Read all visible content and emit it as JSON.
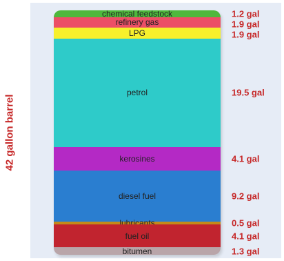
{
  "chart_data": {
    "type": "bar",
    "orientation": "stacked-vertical",
    "ylabel": "42 gallon barrel",
    "total": 42,
    "unit": "gal",
    "categories": [
      "chemical feedstock",
      "refinery gas",
      "LPG",
      "petrol",
      "kerosines",
      "diesel fuel",
      "lubricants",
      "fuel oil",
      "bitumen"
    ],
    "values": [
      1.2,
      1.9,
      1.9,
      19.5,
      4.1,
      9.2,
      0.5,
      4.1,
      1.3
    ],
    "value_labels": [
      "1.2 gal",
      "1.9 gal",
      "1.9 gal",
      "19.5 gal",
      "4.1 gal",
      "9.2 gal",
      "0.5 gal",
      "4.1 gal",
      "1.3 gal"
    ],
    "colors": [
      "#4fb83c",
      "#ec4f66",
      "#f7f02c",
      "#2ecbc9",
      "#b429c5",
      "#2a7ed0",
      "#c48a1a",
      "#c1242f",
      "#b9a5a9"
    ]
  }
}
